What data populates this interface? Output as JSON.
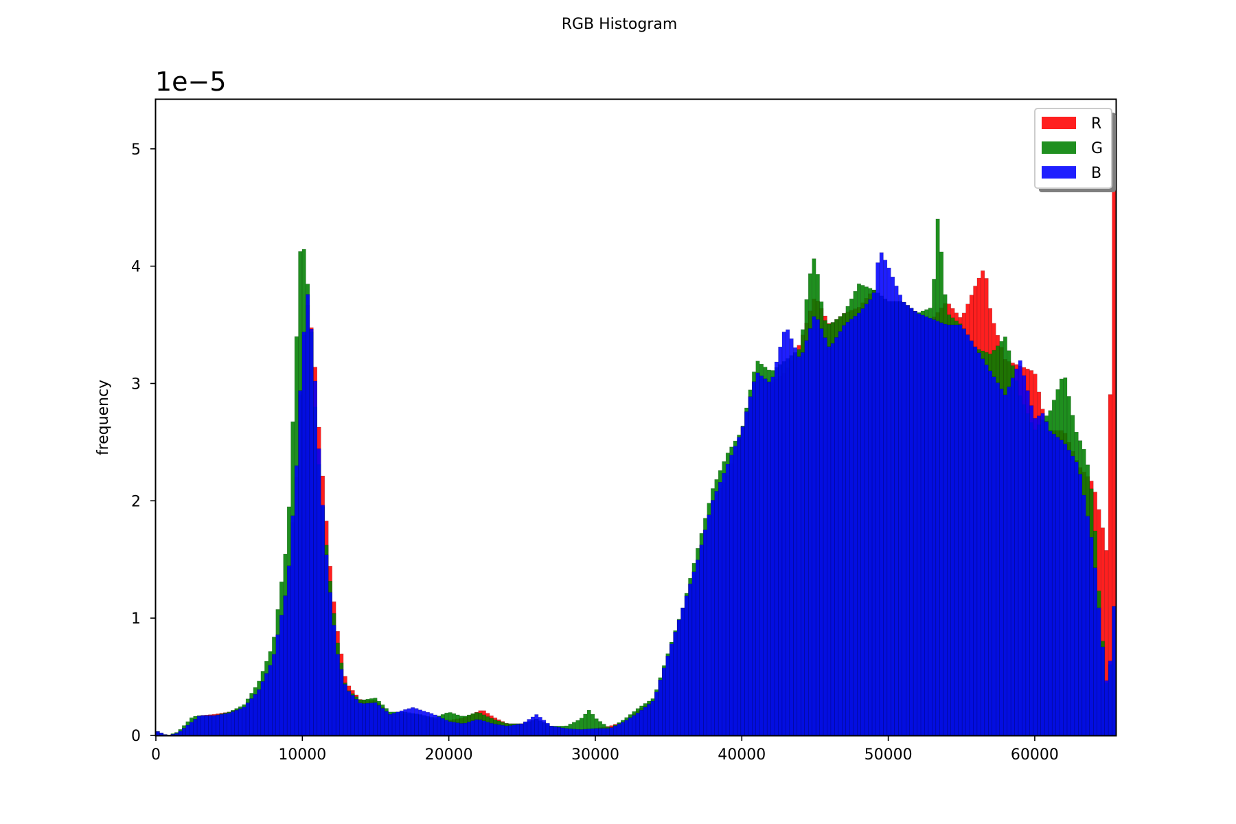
{
  "chart_data": {
    "type": "bar",
    "title": "RGB Histogram",
    "ylabel": "frequency",
    "xlabel": "",
    "y_scale_text": "1e−5",
    "y_multiplier": 1e-05,
    "xlim": [
      0,
      65535
    ],
    "ylim": [
      0,
      5.42
    ],
    "x_ticks": [
      0,
      10000,
      20000,
      30000,
      40000,
      50000,
      60000
    ],
    "y_ticks": [
      0,
      1,
      2,
      3,
      4,
      5
    ],
    "bin_width": 256,
    "grid": false,
    "legend_position": "top-right",
    "series": [
      {
        "name": "R",
        "color": "#ff0000",
        "points": [
          [
            0,
            0.04
          ],
          [
            800,
            0
          ],
          [
            1500,
            0.02
          ],
          [
            2500,
            0.12
          ],
          [
            3000,
            0.17
          ],
          [
            4000,
            0.18
          ],
          [
            5000,
            0.2
          ],
          [
            6000,
            0.24
          ],
          [
            7000,
            0.38
          ],
          [
            8000,
            0.65
          ],
          [
            9000,
            1.3
          ],
          [
            9600,
            2.2
          ],
          [
            10000,
            3.3
          ],
          [
            10400,
            3.7
          ],
          [
            10800,
            3.3
          ],
          [
            11200,
            2.5
          ],
          [
            11600,
            1.9
          ],
          [
            12000,
            1.3
          ],
          [
            12400,
            0.9
          ],
          [
            13000,
            0.45
          ],
          [
            14000,
            0.3
          ],
          [
            15000,
            0.3
          ],
          [
            16000,
            0.18
          ],
          [
            17000,
            0.18
          ],
          [
            18000,
            0.18
          ],
          [
            19000,
            0.14
          ],
          [
            20000,
            0.13
          ],
          [
            21000,
            0.15
          ],
          [
            22300,
            0.22
          ],
          [
            23000,
            0.16
          ],
          [
            24000,
            0.1
          ],
          [
            25000,
            0.1
          ],
          [
            26000,
            0.14
          ],
          [
            27000,
            0.08
          ],
          [
            28000,
            0.06
          ],
          [
            29000,
            0.05
          ],
          [
            30000,
            0.06
          ],
          [
            31000,
            0.08
          ],
          [
            32000,
            0.12
          ],
          [
            33000,
            0.22
          ],
          [
            34000,
            0.3
          ],
          [
            35000,
            0.7
          ],
          [
            36000,
            1.1
          ],
          [
            37000,
            1.5
          ],
          [
            38000,
            2.0
          ],
          [
            39000,
            2.2
          ],
          [
            40000,
            2.6
          ],
          [
            41000,
            3.1
          ],
          [
            42000,
            3.0
          ],
          [
            43000,
            3.1
          ],
          [
            44000,
            3.35
          ],
          [
            45000,
            3.75
          ],
          [
            46000,
            3.5
          ],
          [
            47000,
            3.6
          ],
          [
            48000,
            3.65
          ],
          [
            49000,
            3.8
          ],
          [
            50000,
            3.7
          ],
          [
            51000,
            3.7
          ],
          [
            52000,
            3.6
          ],
          [
            53000,
            3.55
          ],
          [
            54000,
            3.7
          ],
          [
            55000,
            3.55
          ],
          [
            56000,
            3.85
          ],
          [
            56600,
            4.0
          ],
          [
            57000,
            3.6
          ],
          [
            58000,
            3.2
          ],
          [
            59000,
            3.15
          ],
          [
            60000,
            3.1
          ],
          [
            60500,
            2.8
          ],
          [
            61000,
            2.6
          ],
          [
            62000,
            2.6
          ],
          [
            63000,
            2.3
          ],
          [
            64000,
            2.15
          ],
          [
            64600,
            1.8
          ],
          [
            65000,
            1.5
          ],
          [
            65400,
            5.2
          ]
        ]
      },
      {
        "name": "G",
        "color": "#008000",
        "points": [
          [
            0,
            0.04
          ],
          [
            800,
            0
          ],
          [
            1500,
            0.03
          ],
          [
            2500,
            0.16
          ],
          [
            3000,
            0.17
          ],
          [
            4000,
            0.17
          ],
          [
            5000,
            0.2
          ],
          [
            6000,
            0.26
          ],
          [
            7000,
            0.45
          ],
          [
            8000,
            0.78
          ],
          [
            9000,
            1.7
          ],
          [
            9600,
            3.4
          ],
          [
            9900,
            4.25
          ],
          [
            10200,
            4.1
          ],
          [
            10600,
            3.5
          ],
          [
            11000,
            2.5
          ],
          [
            11500,
            1.8
          ],
          [
            12000,
            1.2
          ],
          [
            12400,
            0.8
          ],
          [
            13000,
            0.4
          ],
          [
            14000,
            0.3
          ],
          [
            15000,
            0.32
          ],
          [
            16000,
            0.2
          ],
          [
            17000,
            0.2
          ],
          [
            18000,
            0.18
          ],
          [
            19000,
            0.15
          ],
          [
            20000,
            0.2
          ],
          [
            21000,
            0.16
          ],
          [
            22000,
            0.2
          ],
          [
            23000,
            0.14
          ],
          [
            24000,
            0.1
          ],
          [
            25000,
            0.1
          ],
          [
            26000,
            0.14
          ],
          [
            27000,
            0.08
          ],
          [
            28000,
            0.08
          ],
          [
            29000,
            0.14
          ],
          [
            29600,
            0.22
          ],
          [
            30000,
            0.15
          ],
          [
            31000,
            0.06
          ],
          [
            32000,
            0.14
          ],
          [
            33000,
            0.24
          ],
          [
            34000,
            0.32
          ],
          [
            35000,
            0.72
          ],
          [
            36000,
            1.1
          ],
          [
            37000,
            1.6
          ],
          [
            38000,
            2.1
          ],
          [
            39000,
            2.4
          ],
          [
            40000,
            2.6
          ],
          [
            41000,
            3.2
          ],
          [
            42000,
            3.1
          ],
          [
            43000,
            3.2
          ],
          [
            44000,
            3.3
          ],
          [
            44600,
            3.9
          ],
          [
            45000,
            4.1
          ],
          [
            45600,
            3.55
          ],
          [
            46000,
            3.5
          ],
          [
            47000,
            3.6
          ],
          [
            48000,
            3.85
          ],
          [
            49000,
            3.8
          ],
          [
            50000,
            3.7
          ],
          [
            51000,
            3.7
          ],
          [
            52000,
            3.6
          ],
          [
            53000,
            3.65
          ],
          [
            53400,
            4.45
          ],
          [
            54000,
            3.6
          ],
          [
            55000,
            3.5
          ],
          [
            56000,
            3.3
          ],
          [
            57000,
            3.25
          ],
          [
            58000,
            3.4
          ],
          [
            59000,
            2.9
          ],
          [
            60000,
            2.6
          ],
          [
            60600,
            2.7
          ],
          [
            61000,
            2.75
          ],
          [
            62000,
            3.1
          ],
          [
            62800,
            2.6
          ],
          [
            63500,
            2.4
          ],
          [
            64000,
            2.0
          ],
          [
            64500,
            1.0
          ],
          [
            65000,
            0.3
          ],
          [
            65400,
            1.1
          ]
        ]
      },
      {
        "name": "B",
        "color": "#0000ff",
        "points": [
          [
            0,
            0.04
          ],
          [
            800,
            0
          ],
          [
            1500,
            0.02
          ],
          [
            2500,
            0.12
          ],
          [
            3000,
            0.17
          ],
          [
            4000,
            0.17
          ],
          [
            5000,
            0.19
          ],
          [
            6000,
            0.24
          ],
          [
            7000,
            0.38
          ],
          [
            8000,
            0.65
          ],
          [
            9000,
            1.3
          ],
          [
            9600,
            2.3
          ],
          [
            10000,
            3.3
          ],
          [
            10400,
            3.8
          ],
          [
            10800,
            3.2
          ],
          [
            11200,
            2.3
          ],
          [
            11600,
            1.6
          ],
          [
            12000,
            1.1
          ],
          [
            12400,
            0.7
          ],
          [
            13000,
            0.4
          ],
          [
            14000,
            0.27
          ],
          [
            15000,
            0.28
          ],
          [
            16000,
            0.18
          ],
          [
            17000,
            0.22
          ],
          [
            17600,
            0.24
          ],
          [
            18000,
            0.22
          ],
          [
            19000,
            0.18
          ],
          [
            20000,
            0.12
          ],
          [
            21000,
            0.1
          ],
          [
            22000,
            0.14
          ],
          [
            23000,
            0.1
          ],
          [
            24000,
            0.08
          ],
          [
            25000,
            0.1
          ],
          [
            26000,
            0.18
          ],
          [
            27000,
            0.08
          ],
          [
            28000,
            0.06
          ],
          [
            29000,
            0.05
          ],
          [
            30000,
            0.06
          ],
          [
            31000,
            0.06
          ],
          [
            32000,
            0.12
          ],
          [
            33000,
            0.2
          ],
          [
            34000,
            0.3
          ],
          [
            35000,
            0.7
          ],
          [
            36000,
            1.1
          ],
          [
            37000,
            1.5
          ],
          [
            38000,
            2.0
          ],
          [
            39000,
            2.3
          ],
          [
            40000,
            2.6
          ],
          [
            41000,
            3.1
          ],
          [
            42000,
            3.0
          ],
          [
            43000,
            3.5
          ],
          [
            44000,
            3.2
          ],
          [
            45000,
            3.6
          ],
          [
            46000,
            3.3
          ],
          [
            47000,
            3.5
          ],
          [
            48000,
            3.6
          ],
          [
            49000,
            3.75
          ],
          [
            49400,
            4.15
          ],
          [
            50000,
            4.0
          ],
          [
            51000,
            3.7
          ],
          [
            52000,
            3.6
          ],
          [
            53000,
            3.55
          ],
          [
            54000,
            3.5
          ],
          [
            55000,
            3.5
          ],
          [
            56000,
            3.3
          ],
          [
            57000,
            3.1
          ],
          [
            58000,
            2.9
          ],
          [
            59000,
            3.2
          ],
          [
            60000,
            2.7
          ],
          [
            60600,
            2.75
          ],
          [
            61000,
            2.6
          ],
          [
            62000,
            2.5
          ],
          [
            63000,
            2.3
          ],
          [
            64000,
            1.6
          ],
          [
            64600,
            0.8
          ],
          [
            65000,
            0.35
          ],
          [
            65400,
            1.1
          ]
        ]
      }
    ]
  }
}
